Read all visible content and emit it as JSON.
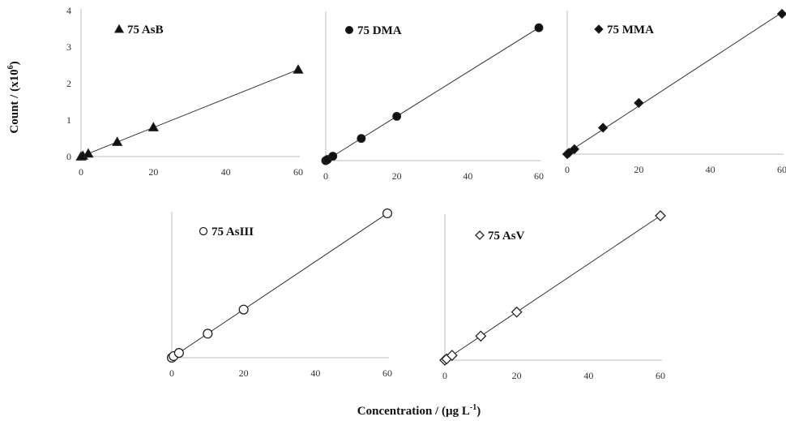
{
  "figure": {
    "ylabel": "Count / (x10",
    "ylabel_sup": "6",
    "ylabel_end": ")",
    "xlabel": "Concentration / (µg L",
    "xlabel_sup": "-1",
    "xlabel_end": ")"
  },
  "chart_data": [
    {
      "type": "scatter",
      "label": "75  AsB",
      "marker": "filled-triangle",
      "x": [
        0,
        0.5,
        2,
        10,
        20,
        60
      ],
      "y": [
        0,
        0.02,
        0.08,
        0.4,
        0.8,
        2.38
      ],
      "xlim": [
        0,
        60
      ],
      "ylim": [
        0,
        4
      ],
      "xticks": [
        0,
        20,
        40,
        60
      ],
      "yticks": [
        0,
        1,
        2,
        3,
        4
      ],
      "trendline": true
    },
    {
      "type": "scatter",
      "label": "75  DMA",
      "marker": "filled-circle",
      "x": [
        0,
        0.5,
        2,
        10,
        20,
        60
      ],
      "y": [
        0,
        0.03,
        0.12,
        0.6,
        1.2,
        3.6
      ],
      "xlim": [
        0,
        60
      ],
      "ylim": [
        0,
        4
      ],
      "xticks": [
        0,
        20,
        40,
        60
      ],
      "trendline": true
    },
    {
      "type": "scatter",
      "label": "75  MMA",
      "marker": "filled-diamond",
      "x": [
        0,
        0.5,
        2,
        10,
        20,
        60
      ],
      "y": [
        0,
        0.04,
        0.15,
        0.8,
        1.55,
        4.25
      ],
      "xlim": [
        0,
        60
      ],
      "ylim": [
        0,
        4.3
      ],
      "xticks": [
        0,
        20,
        40,
        60
      ],
      "trendline": true
    },
    {
      "type": "scatter",
      "label": "75  AsIII",
      "marker": "open-circle",
      "x": [
        0,
        0.5,
        2,
        10,
        20,
        60
      ],
      "y": [
        0,
        0.04,
        0.12,
        0.6,
        1.2,
        3.6
      ],
      "xlim": [
        0,
        60
      ],
      "ylim": [
        0,
        3.6
      ],
      "xticks": [
        0,
        20,
        40,
        60
      ],
      "trendline": true
    },
    {
      "type": "scatter",
      "label": "75  AsV",
      "marker": "open-diamond",
      "x": [
        0,
        0.5,
        2,
        10,
        20,
        60
      ],
      "y": [
        0,
        0.03,
        0.12,
        0.6,
        1.2,
        3.6
      ],
      "xlim": [
        0,
        60
      ],
      "ylim": [
        0,
        3.6
      ],
      "xticks": [
        0,
        20,
        40,
        60
      ],
      "trendline": true
    }
  ]
}
